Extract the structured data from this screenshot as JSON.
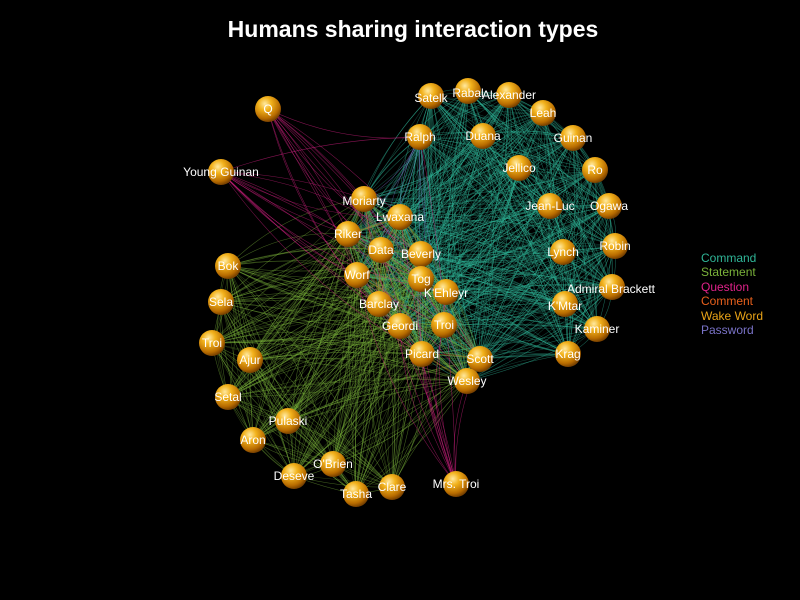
{
  "title": "Humans sharing interaction types",
  "legend": [
    {
      "label": "Command",
      "color": "#2fb597"
    },
    {
      "label": "Statement",
      "color": "#7ab23a"
    },
    {
      "label": "Question",
      "color": "#e0228a"
    },
    {
      "label": "Comment",
      "color": "#e8601c"
    },
    {
      "label": "Wake Word",
      "color": "#e8a317"
    },
    {
      "label": "Password",
      "color": "#7a73c8"
    }
  ],
  "colors": {
    "background": "#000000",
    "node": "#e89a10",
    "node_highlight": "#ffe9a0",
    "label": "#ffffff"
  },
  "nodes": [
    {
      "name": "Q",
      "cluster": "question"
    },
    {
      "name": "Young Guinan",
      "cluster": "question"
    },
    {
      "name": "Satelk",
      "cluster": "command"
    },
    {
      "name": "Rabal",
      "cluster": "command"
    },
    {
      "name": "Alexander",
      "cluster": "command"
    },
    {
      "name": "Leah",
      "cluster": "command"
    },
    {
      "name": "Guinan",
      "cluster": "command"
    },
    {
      "name": "Ralph",
      "cluster": "command"
    },
    {
      "name": "Duana",
      "cluster": "command"
    },
    {
      "name": "Jellico",
      "cluster": "command"
    },
    {
      "name": "Ro",
      "cluster": "command"
    },
    {
      "name": "Moriarty",
      "cluster": "mixed"
    },
    {
      "name": "Lwaxana",
      "cluster": "mixed"
    },
    {
      "name": "Jean-Luc",
      "cluster": "command"
    },
    {
      "name": "Ogawa",
      "cluster": "command"
    },
    {
      "name": "Riker",
      "cluster": "mixed"
    },
    {
      "name": "Data",
      "cluster": "mixed"
    },
    {
      "name": "Beverly",
      "cluster": "mixed"
    },
    {
      "name": "Robin",
      "cluster": "command"
    },
    {
      "name": "Lynch",
      "cluster": "command"
    },
    {
      "name": "Bok",
      "cluster": "statement"
    },
    {
      "name": "Worf",
      "cluster": "mixed"
    },
    {
      "name": "Tog",
      "cluster": "mixed"
    },
    {
      "name": "K'Ehleyr",
      "cluster": "mixed"
    },
    {
      "name": "Admiral Brackett",
      "cluster": "command"
    },
    {
      "name": "Sela",
      "cluster": "statement"
    },
    {
      "name": "Barclay",
      "cluster": "mixed"
    },
    {
      "name": "K'Mtar",
      "cluster": "command"
    },
    {
      "name": "Geordi",
      "cluster": "mixed"
    },
    {
      "name": "Troi",
      "cluster": "mixed"
    },
    {
      "name": "Kaminer",
      "cluster": "command"
    },
    {
      "name": "Troi",
      "cluster": "statement"
    },
    {
      "name": "Ajur",
      "cluster": "statement"
    },
    {
      "name": "Picard",
      "cluster": "mixed"
    },
    {
      "name": "Scott",
      "cluster": "mixed"
    },
    {
      "name": "Krag",
      "cluster": "command"
    },
    {
      "name": "Wesley",
      "cluster": "mixed"
    },
    {
      "name": "Setal",
      "cluster": "statement"
    },
    {
      "name": "Pulaski",
      "cluster": "statement"
    },
    {
      "name": "Aron",
      "cluster": "statement"
    },
    {
      "name": "O'Brien",
      "cluster": "statement"
    },
    {
      "name": "Deseve",
      "cluster": "statement"
    },
    {
      "name": "Clare",
      "cluster": "statement"
    },
    {
      "name": "Tasha",
      "cluster": "statement"
    },
    {
      "name": "Mrs. Troi",
      "cluster": "question"
    }
  ]
}
